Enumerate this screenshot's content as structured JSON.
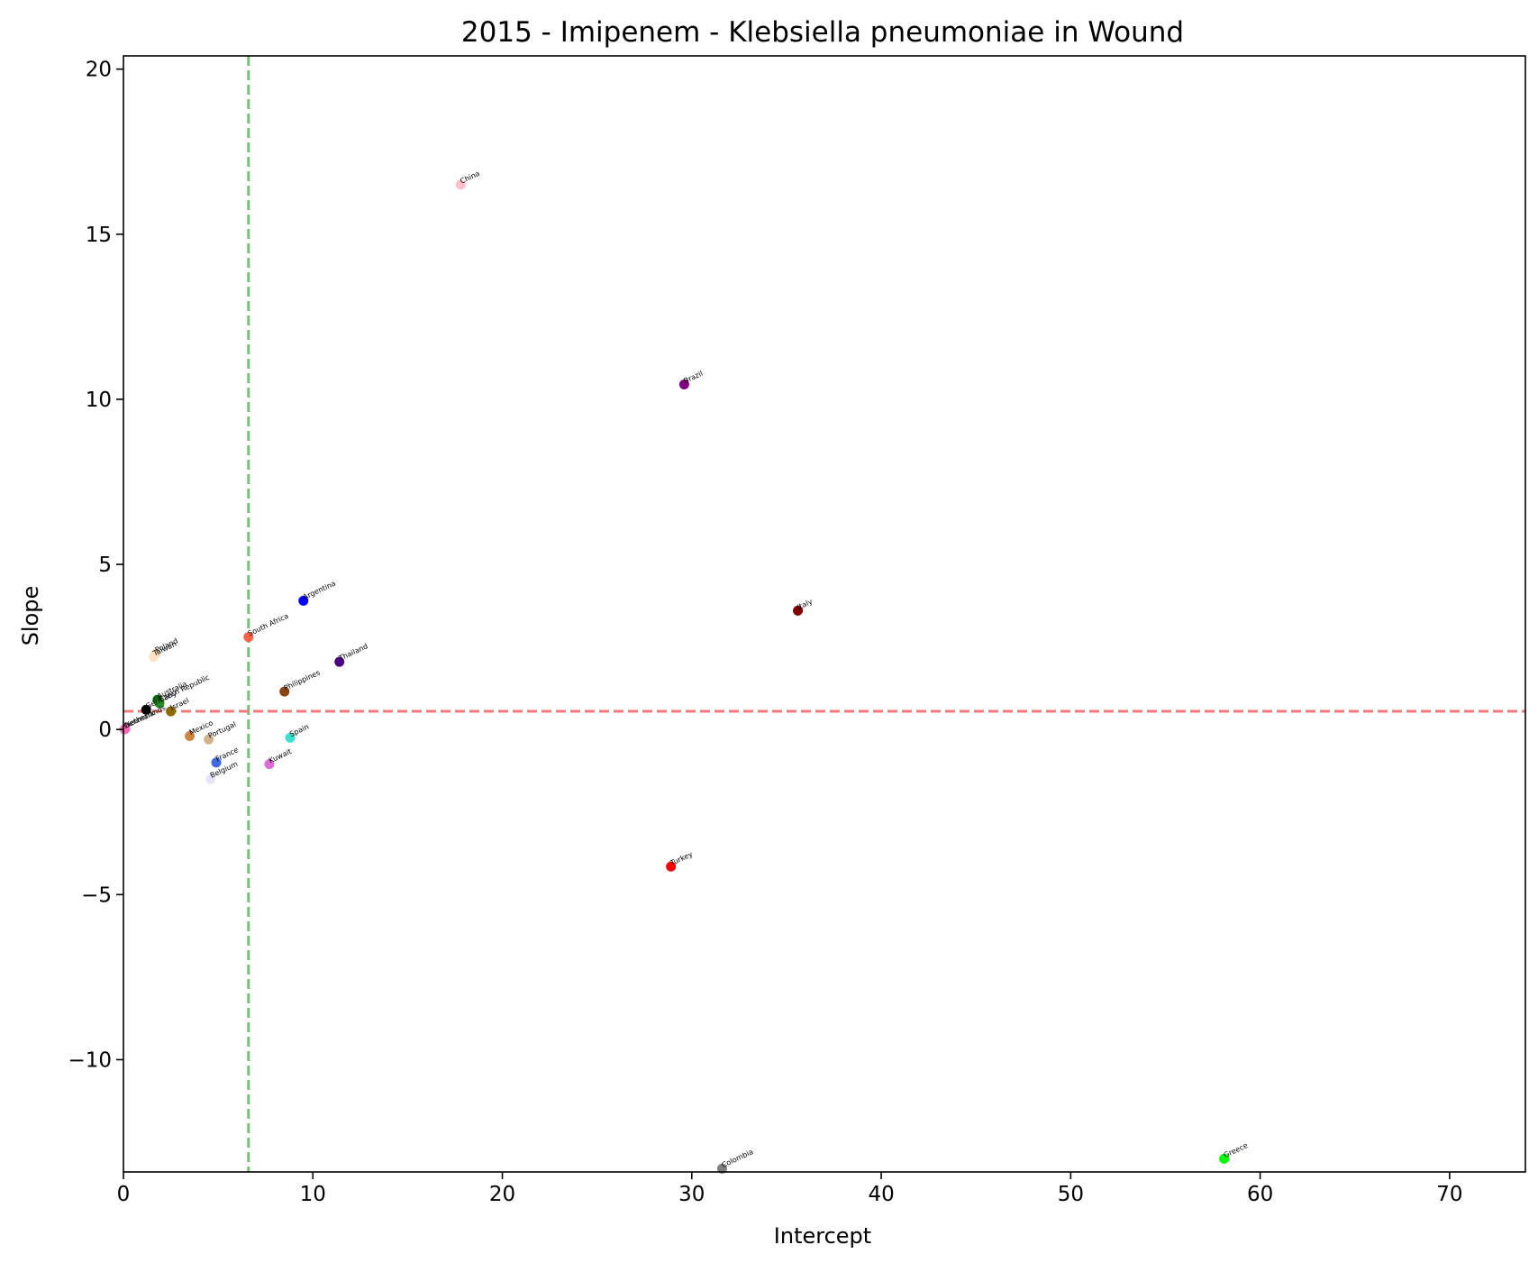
{
  "chart_data": {
    "type": "scatter",
    "title": "2015 - Imipenem - Klebsiella pneumoniae in Wound",
    "xlabel": "Intercept",
    "ylabel": "Slope",
    "xlim": [
      0,
      74
    ],
    "ylim": [
      -13.4,
      20.4
    ],
    "xticks": [
      0,
      10,
      20,
      30,
      40,
      50,
      60,
      70
    ],
    "yticks": [
      -10,
      -5,
      0,
      5,
      10,
      15,
      20
    ],
    "xtick_labels": [
      "0",
      "10",
      "20",
      "30",
      "40",
      "50",
      "60",
      "70"
    ],
    "ytick_labels": [
      "−10",
      "−5",
      "0",
      "5",
      "10",
      "15",
      "20"
    ],
    "grid": false,
    "reference_lines": [
      {
        "orientation": "vertical",
        "x": 6.6,
        "color": "#77c177",
        "style": "dashed"
      },
      {
        "orientation": "horizontal",
        "y": 0.55,
        "color": "#f27c7c",
        "style": "dashed"
      }
    ],
    "points": [
      {
        "label": "China",
        "x": 17.8,
        "y": 16.5,
        "color": "#ffc0cb"
      },
      {
        "label": "Brazil",
        "x": 29.6,
        "y": 10.45,
        "color": "#800080"
      },
      {
        "label": "Argentina",
        "x": 9.5,
        "y": 3.9,
        "color": "#0000ff"
      },
      {
        "label": "Italy",
        "x": 35.6,
        "y": 3.6,
        "color": "#800000"
      },
      {
        "label": "South Africa",
        "x": 6.6,
        "y": 2.8,
        "color": "#ff6347"
      },
      {
        "label": "Thailand",
        "x": 11.4,
        "y": 2.05,
        "color": "#4b0082"
      },
      {
        "label": "Poland",
        "x": 1.7,
        "y": 2.3,
        "color": "#f5deb3"
      },
      {
        "label": "Taiwan",
        "x": 1.6,
        "y": 2.2,
        "color": "#ffe4c4"
      },
      {
        "label": "Philippines",
        "x": 8.5,
        "y": 1.15,
        "color": "#8b4513"
      },
      {
        "label": "Australia",
        "x": 1.8,
        "y": 0.9,
        "color": "#006400"
      },
      {
        "label": "Czech Republic",
        "x": 1.9,
        "y": 0.8,
        "color": "#228b22"
      },
      {
        "label": "Germany",
        "x": 1.2,
        "y": 0.6,
        "color": "#000000"
      },
      {
        "label": "Israel",
        "x": 2.5,
        "y": 0.55,
        "color": "#8b6b00"
      },
      {
        "label": "Denmark",
        "x": 0.05,
        "y": 0.0,
        "color": "#dda0dd"
      },
      {
        "label": "Netherlands",
        "x": 0.1,
        "y": 0.02,
        "color": "#ff69b4"
      },
      {
        "label": "Mexico",
        "x": 3.5,
        "y": -0.2,
        "color": "#cd853f"
      },
      {
        "label": "Portugal",
        "x": 4.5,
        "y": -0.3,
        "color": "#d2b48c"
      },
      {
        "label": "Spain",
        "x": 8.8,
        "y": -0.25,
        "color": "#40e0d0"
      },
      {
        "label": "France",
        "x": 4.9,
        "y": -1.0,
        "color": "#4169e1"
      },
      {
        "label": "Kuwait",
        "x": 7.7,
        "y": -1.05,
        "color": "#da70d6"
      },
      {
        "label": "Belgium",
        "x": 4.6,
        "y": -1.5,
        "color": "#e6e6fa"
      },
      {
        "label": "Turkey",
        "x": 28.9,
        "y": -4.15,
        "color": "#ff0000"
      },
      {
        "label": "Colombia",
        "x": 31.6,
        "y": -13.3,
        "color": "#808080"
      },
      {
        "label": "Greece",
        "x": 58.1,
        "y": -13.0,
        "color": "#00ff00"
      }
    ]
  }
}
